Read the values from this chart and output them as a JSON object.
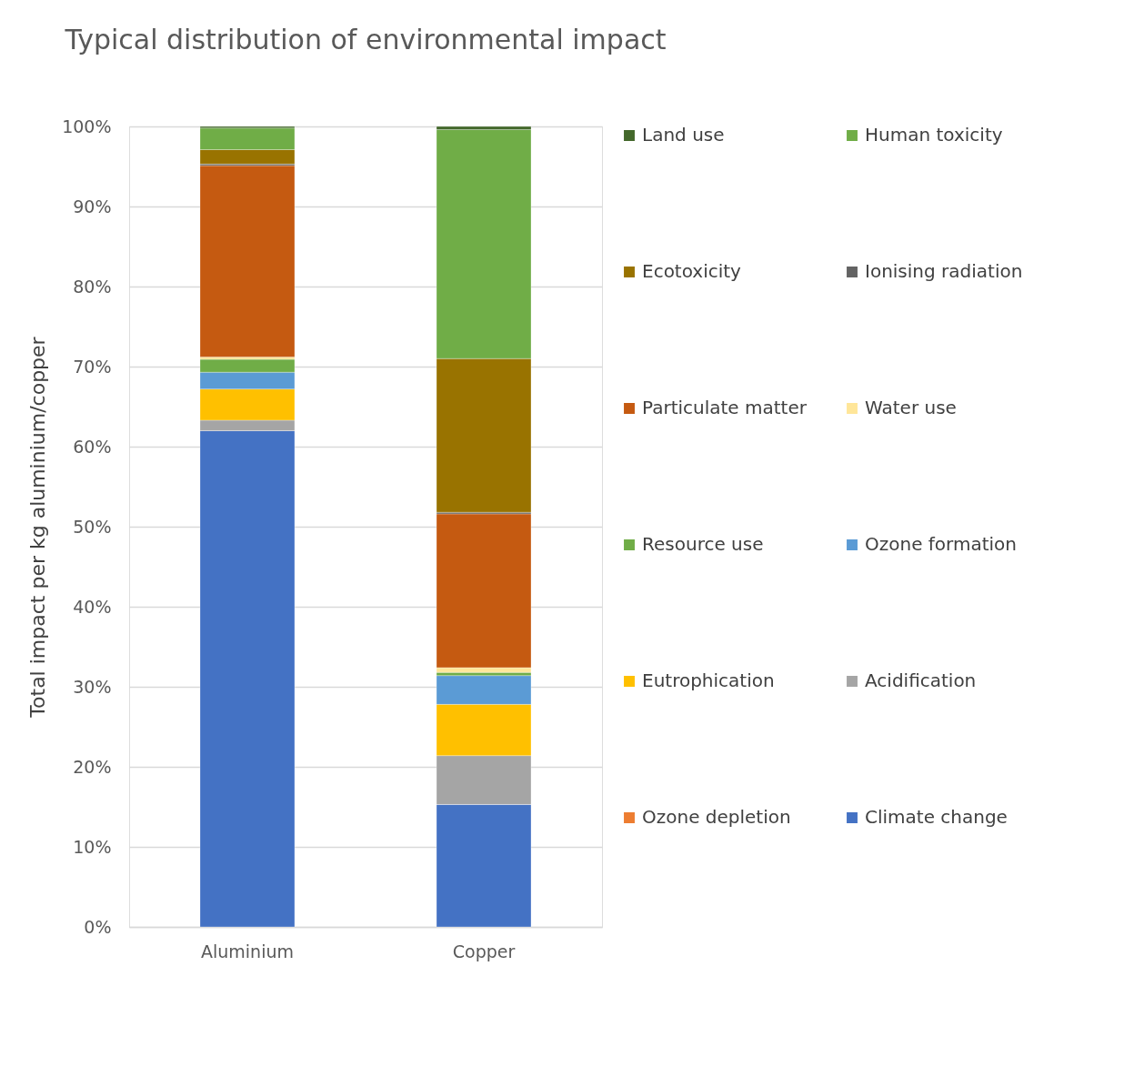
{
  "chart_data": {
    "type": "bar",
    "title": "Typical distribution of environmental impact",
    "ylabel": "Total impact per kg aluminium/copper",
    "stacked": true,
    "categories": [
      "Aluminium",
      "Copper"
    ],
    "series": [
      {
        "name": "Climate change",
        "color": "#4472c4",
        "values": [
          62.0,
          15.3
        ]
      },
      {
        "name": "Ozone depletion",
        "color": "#ed7d31",
        "values": [
          0,
          0
        ]
      },
      {
        "name": "Acidification",
        "color": "#a5a5a5",
        "values": [
          1.3,
          6.1
        ]
      },
      {
        "name": "Eutrophication",
        "color": "#ffc000",
        "values": [
          3.9,
          6.4
        ]
      },
      {
        "name": "Ozone formation",
        "color": "#5b9bd5",
        "values": [
          2.1,
          3.6
        ]
      },
      {
        "name": "Resource use",
        "color": "#70ad47",
        "values": [
          1.6,
          0.4
        ]
      },
      {
        "name": "Water use",
        "color": "#ffe699",
        "values": [
          0.3,
          0.6
        ]
      },
      {
        "name": "Particulate matter",
        "color": "#c55a11",
        "values": [
          23.9,
          19.2
        ]
      },
      {
        "name": "Ionising radiation",
        "color": "#636363",
        "values": [
          0.2,
          0.2
        ]
      },
      {
        "name": "Ecotoxicity",
        "color": "#997300",
        "values": [
          1.8,
          19.2
        ]
      },
      {
        "name": "Human toxicity",
        "color": "#70ad47",
        "values": [
          2.7,
          28.6
        ]
      },
      {
        "name": "Land use",
        "color": "#43682b",
        "values": [
          0.2,
          0.4
        ]
      }
    ],
    "ylim": [
      0,
      100
    ],
    "yticks": [
      {
        "value": 0,
        "label": "0%"
      },
      {
        "value": 10,
        "label": "10%"
      },
      {
        "value": 20,
        "label": "20%"
      },
      {
        "value": 30,
        "label": "30%"
      },
      {
        "value": 40,
        "label": "40%"
      },
      {
        "value": 50,
        "label": "50%"
      },
      {
        "value": 60,
        "label": "60%"
      },
      {
        "value": 70,
        "label": "70%"
      },
      {
        "value": 80,
        "label": "80%"
      },
      {
        "value": 90,
        "label": "90%"
      },
      {
        "value": 100,
        "label": "100%"
      }
    ],
    "grid": "y",
    "legend": "right"
  }
}
